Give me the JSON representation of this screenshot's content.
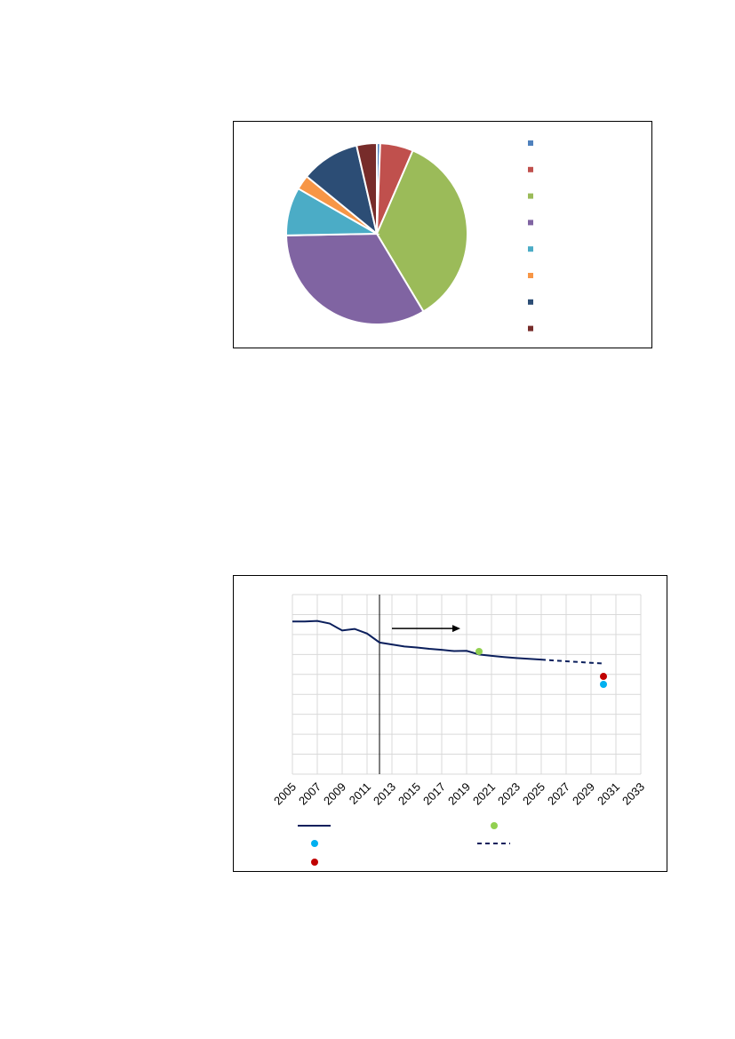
{
  "chart_data": [
    {
      "type": "pie",
      "title": "",
      "legend_position": "right",
      "slices": [
        {
          "value": 0.6,
          "color": "#4F81BD"
        },
        {
          "value": 5.9,
          "color": "#C0504D"
        },
        {
          "value": 34.9,
          "color": "#9BBB59"
        },
        {
          "value": 33.3,
          "color": "#8064A2"
        },
        {
          "value": 8.6,
          "color": "#4BACC6"
        },
        {
          "value": 2.6,
          "color": "#F79646"
        },
        {
          "value": 10.5,
          "color": "#2C4D75"
        },
        {
          "value": 3.6,
          "color": "#772C2A"
        }
      ]
    },
    {
      "type": "line",
      "title": "",
      "legend_position": "bottom",
      "grid": true,
      "xlim": [
        2005,
        2033
      ],
      "ylim": [
        0,
        9
      ],
      "x_ticks": [
        "2005",
        "2007",
        "2009",
        "2011",
        "2013",
        "2015",
        "2017",
        "2019",
        "2021",
        "2023",
        "2025",
        "2027",
        "2029",
        "2031",
        "2033"
      ],
      "vertical_marker_x": 2012,
      "arrow": {
        "from": 2013,
        "to": 2018.5,
        "y": 7.3
      },
      "series": [
        {
          "style": "solid",
          "color": "#0B1F5C",
          "x": [
            2005,
            2006,
            2007,
            2008,
            2009,
            2010,
            2011,
            2012,
            2013,
            2014,
            2015,
            2016,
            2017,
            2018,
            2019,
            2020,
            2021,
            2022,
            2023,
            2024,
            2025
          ],
          "y": [
            7.65,
            7.65,
            7.68,
            7.55,
            7.2,
            7.28,
            7.05,
            6.6,
            6.5,
            6.4,
            6.35,
            6.28,
            6.23,
            6.17,
            6.18,
            6.0,
            5.93,
            5.87,
            5.82,
            5.78,
            5.74
          ]
        },
        {
          "style": "dashed",
          "color": "#0B1F5C",
          "x": [
            2025,
            2026,
            2027,
            2028,
            2029,
            2030
          ],
          "y": [
            5.74,
            5.7,
            5.66,
            5.62,
            5.58,
            5.55
          ]
        }
      ],
      "points": [
        {
          "x": 2020,
          "y": 6.15,
          "color": "#92D050"
        },
        {
          "x": 2030,
          "y": 4.5,
          "color": "#00B0F0"
        },
        {
          "x": 2030,
          "y": 4.9,
          "color": "#C00000"
        }
      ]
    }
  ]
}
